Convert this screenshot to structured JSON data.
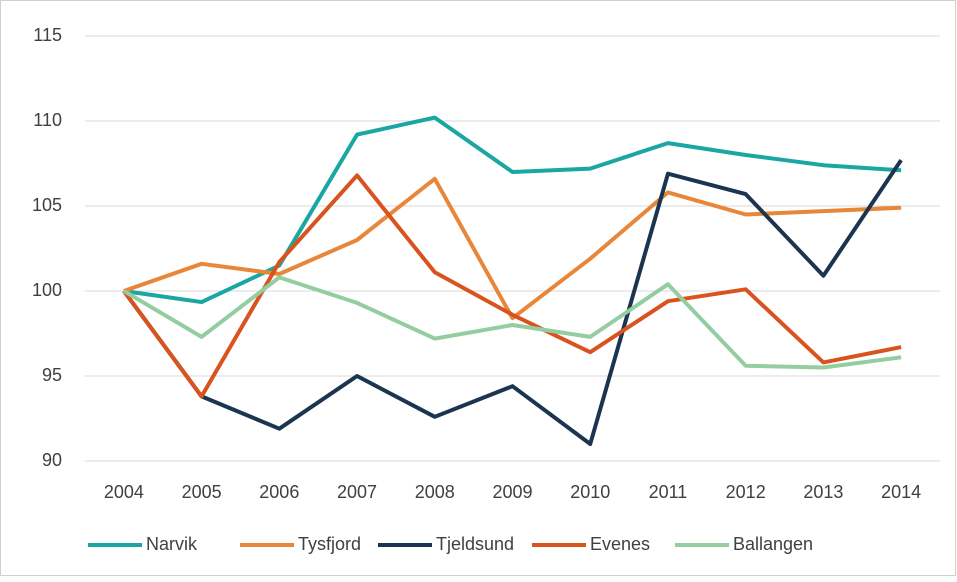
{
  "chart_data": {
    "type": "line",
    "categories": [
      "2004",
      "2005",
      "2006",
      "2007",
      "2008",
      "2009",
      "2010",
      "2011",
      "2012",
      "2013",
      "2014"
    ],
    "series": [
      {
        "name": "Narvik",
        "color": "#1aa6a3",
        "values": [
          100,
          99.35,
          101.5,
          109.2,
          110.2,
          107.0,
          107.2,
          108.7,
          108.0,
          107.4,
          107.1
        ]
      },
      {
        "name": "Tysfjord",
        "color": "#e8873a",
        "values": [
          100,
          101.6,
          101.0,
          103.0,
          106.6,
          98.4,
          101.9,
          105.8,
          104.5,
          104.7,
          104.9
        ]
      },
      {
        "name": "Tjeldsund",
        "color": "#1b3550",
        "values": [
          100,
          93.8,
          91.9,
          95.0,
          92.6,
          94.4,
          91.0,
          106.9,
          105.7,
          100.9,
          107.7
        ]
      },
      {
        "name": "Evenes",
        "color": "#d9531e",
        "values": [
          100,
          93.8,
          101.7,
          106.8,
          101.1,
          98.6,
          96.4,
          99.4,
          100.1,
          95.8,
          96.7
        ]
      },
      {
        "name": "Ballangen",
        "color": "#93cda0",
        "values": [
          100,
          97.3,
          100.8,
          99.3,
          97.2,
          98.0,
          97.3,
          100.4,
          95.6,
          95.5,
          96.1
        ]
      }
    ],
    "ylim": [
      90,
      115
    ],
    "yticks": [
      90,
      95,
      100,
      105,
      110,
      115
    ],
    "grid": true,
    "legend": "bottom"
  }
}
